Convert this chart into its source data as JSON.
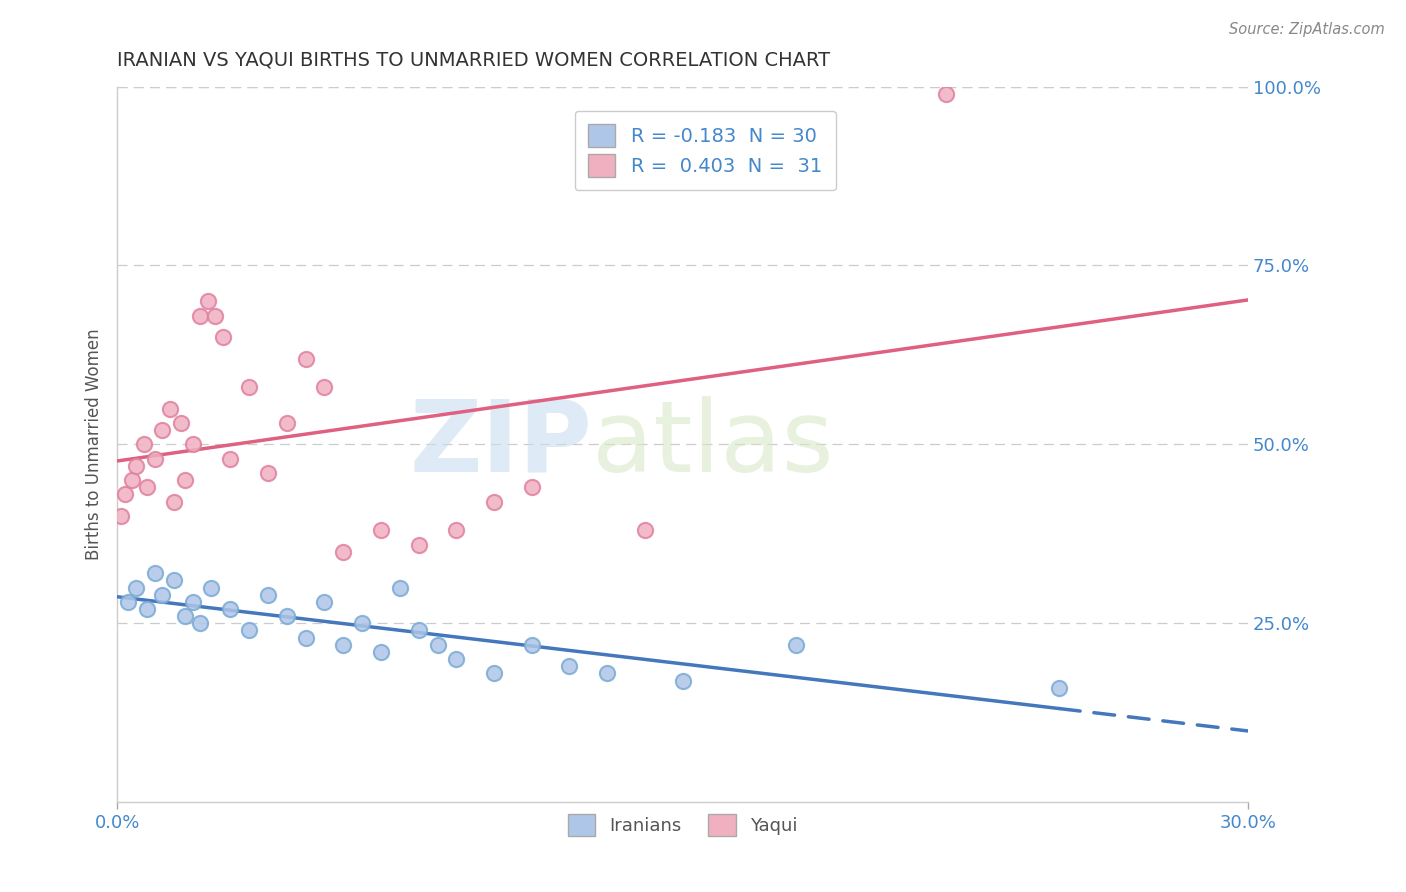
{
  "title": "IRANIAN VS YAQUI BIRTHS TO UNMARRIED WOMEN CORRELATION CHART",
  "source": "Source: ZipAtlas.com",
  "ylabel": "Births to Unmarried Women",
  "xlim": [
    0.0,
    30.0
  ],
  "ylim": [
    0.0,
    100.0
  ],
  "y_ticks_right": [
    25.0,
    50.0,
    75.0,
    100.0
  ],
  "y_tick_labels_right": [
    "25.0%",
    "50.0%",
    "75.0%",
    "100.0%"
  ],
  "iranians_color": "#aec6e8",
  "iranians_edge_color": "#7aaad4",
  "yaqui_color": "#f0b0c0",
  "yaqui_edge_color": "#e080a0",
  "iranians_line_color": "#4477bb",
  "yaqui_line_color": "#e06080",
  "R_iranians": -0.183,
  "N_iranians": 30,
  "R_yaqui": 0.403,
  "N_yaqui": 31,
  "legend_label_iranians": "Iranians",
  "legend_label_yaqui": "Yaqui",
  "watermark_zip": "ZIP",
  "watermark_atlas": "atlas",
  "background_color": "#ffffff",
  "grid_color": "#cccccc",
  "iranians_x": [
    0.3,
    0.5,
    0.8,
    1.0,
    1.2,
    1.5,
    1.8,
    2.0,
    2.2,
    2.5,
    3.0,
    3.5,
    4.0,
    4.5,
    5.0,
    5.5,
    6.0,
    6.5,
    7.0,
    7.5,
    8.0,
    8.5,
    9.0,
    10.0,
    11.0,
    12.0,
    13.0,
    15.0,
    18.0,
    25.0
  ],
  "iranians_y": [
    28.0,
    30.0,
    27.0,
    32.0,
    29.0,
    31.0,
    26.0,
    28.0,
    25.0,
    30.0,
    27.0,
    24.0,
    29.0,
    26.0,
    23.0,
    28.0,
    22.0,
    25.0,
    21.0,
    30.0,
    24.0,
    22.0,
    20.0,
    18.0,
    22.0,
    19.0,
    18.0,
    17.0,
    22.0,
    16.0
  ],
  "yaqui_x": [
    0.1,
    0.2,
    0.4,
    0.5,
    0.7,
    0.8,
    1.0,
    1.2,
    1.4,
    1.5,
    1.7,
    1.8,
    2.0,
    2.2,
    2.4,
    2.6,
    2.8,
    3.0,
    3.5,
    4.0,
    4.5,
    5.0,
    5.5,
    6.0,
    7.0,
    8.0,
    9.0,
    10.0,
    11.0,
    14.0,
    22.0
  ],
  "yaqui_y": [
    40.0,
    43.0,
    45.0,
    47.0,
    50.0,
    44.0,
    48.0,
    52.0,
    55.0,
    42.0,
    53.0,
    45.0,
    50.0,
    68.0,
    70.0,
    68.0,
    65.0,
    48.0,
    58.0,
    46.0,
    53.0,
    62.0,
    58.0,
    35.0,
    38.0,
    36.0,
    38.0,
    42.0,
    44.0,
    38.0,
    99.0
  ]
}
